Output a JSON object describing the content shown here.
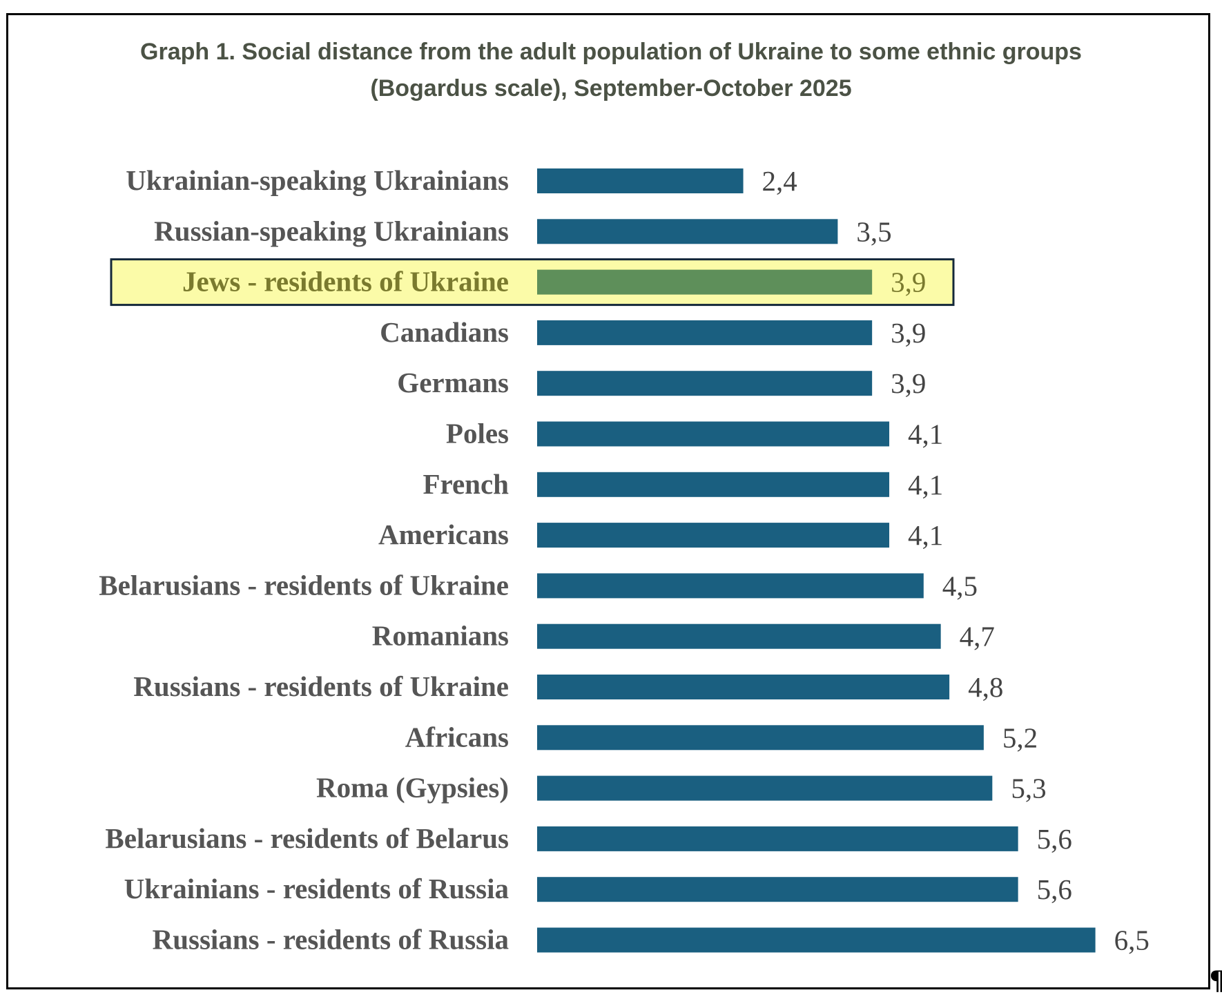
{
  "chart_data": {
    "type": "bar",
    "orientation": "horizontal",
    "title": "Graph 1. Social distance from the adult population of Ukraine to some ethnic groups",
    "subtitle": "(Bogardus scale), September-October 2025",
    "xlabel": "",
    "ylabel": "",
    "xlim": [
      0,
      7
    ],
    "grid": false,
    "categories": [
      "Ukrainian-speaking Ukrainians",
      "Russian-speaking Ukrainians",
      "Jews - residents of Ukraine",
      "Canadians",
      "Germans",
      "Poles",
      "French",
      "Americans",
      "Belarusians - residents of Ukraine",
      "Romanians",
      "Russians - residents of Ukraine",
      "Africans",
      "Roma (Gypsies)",
      "Belarusians - residents of Belarus",
      "Ukrainians - residents of Russia",
      "Russians - residents of Russia"
    ],
    "values": [
      2.4,
      3.5,
      3.9,
      3.9,
      3.9,
      4.1,
      4.1,
      4.1,
      4.5,
      4.7,
      4.8,
      5.2,
      5.3,
      5.6,
      5.6,
      6.5
    ],
    "value_labels": [
      "2,4",
      "3,5",
      "3,9",
      "3,9",
      "3,9",
      "4,1",
      "4,1",
      "4,1",
      "4,5",
      "4,7",
      "4,8",
      "5,2",
      "5,3",
      "5,6",
      "5,6",
      "6,5"
    ],
    "highlighted_index": 2,
    "colors": {
      "bar": "#1a5f80",
      "highlight_bar": "#5e8f5a",
      "highlight_fill": "#fbfba8",
      "highlight_border": "#14283a",
      "highlight_text": "#7a7a2e"
    }
  },
  "footer": {
    "pilcrow": "¶"
  }
}
